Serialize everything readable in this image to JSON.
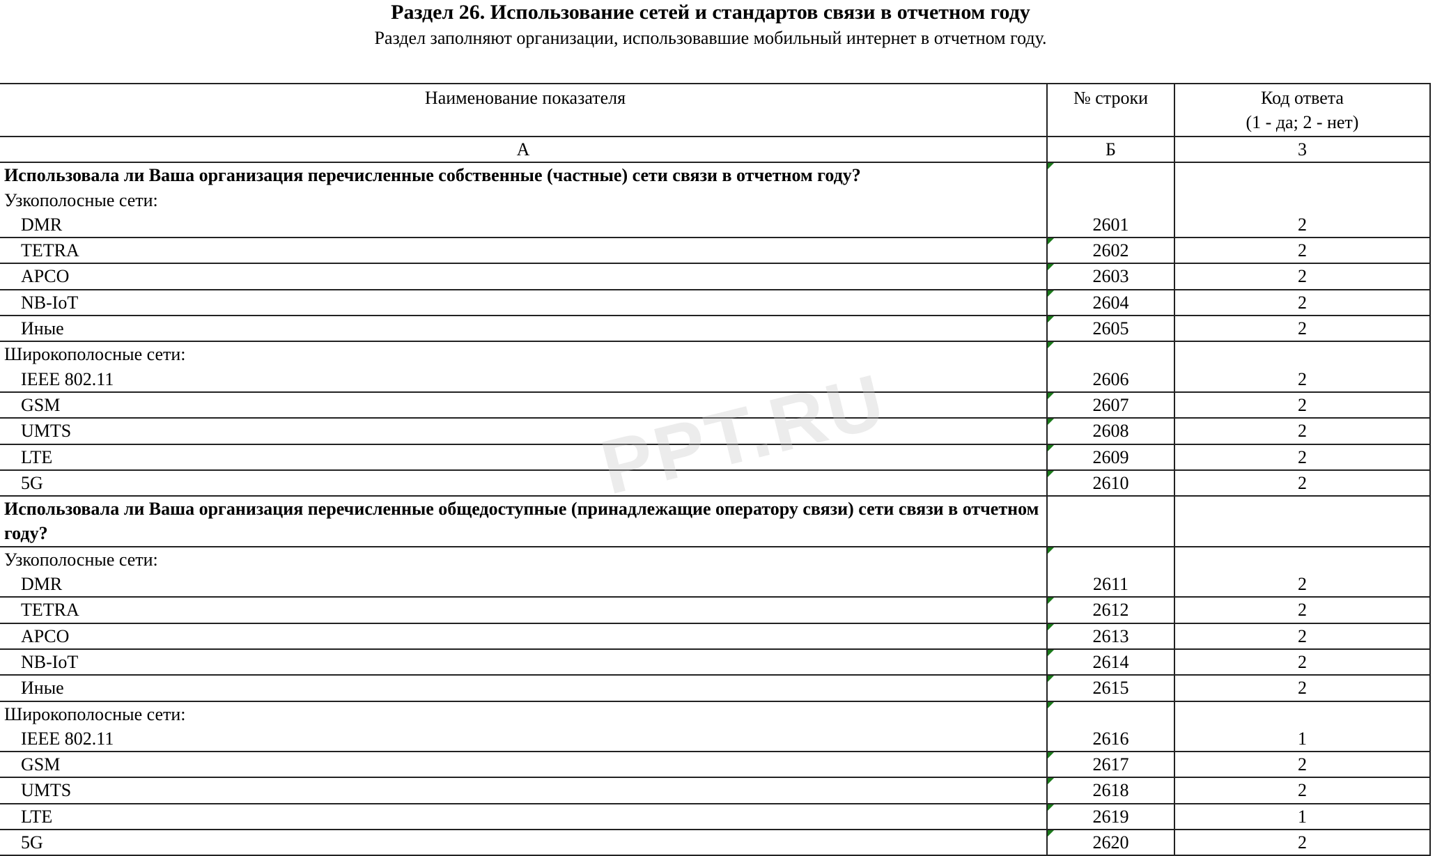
{
  "title": "Раздел 26. Использование сетей и стандартов связи в отчетном году",
  "subtitle": "Раздел заполняют организации, использовавшие мобильный интернет в отчетном году.",
  "watermark": "PPT.RU",
  "colors": {
    "marker": "#1b7a1b",
    "border": "#222222"
  },
  "table": {
    "headers": {
      "name": "Наименование показателя",
      "row_no": "№ строки",
      "code_line1": "Код ответа",
      "code_line2": "(1 - да; 2 - нет)"
    },
    "letters": {
      "a": "А",
      "b": "Б",
      "c": "3"
    },
    "rows": [
      {
        "lines": [
          {
            "t": "Использовала ли Ваша организация перечисленные собственные (частные) сети связи в отчетном году?",
            "s": "bold"
          },
          {
            "t": "Узкополосные сети:",
            "s": ""
          },
          {
            "t": "DMR",
            "s": "indent"
          }
        ],
        "no": "2601",
        "answer": "2",
        "marker": true
      },
      {
        "lines": [
          {
            "t": "TETRA",
            "s": "indent"
          }
        ],
        "no": "2602",
        "answer": "2",
        "marker": true
      },
      {
        "lines": [
          {
            "t": "APCO",
            "s": "indent"
          }
        ],
        "no": "2603",
        "answer": "2",
        "marker": true
      },
      {
        "lines": [
          {
            "t": "NB-IoT",
            "s": "indent"
          }
        ],
        "no": "2604",
        "answer": "2",
        "marker": true
      },
      {
        "lines": [
          {
            "t": "Иные",
            "s": "indent"
          }
        ],
        "no": "2605",
        "answer": "2",
        "marker": true
      },
      {
        "lines": [
          {
            "t": "Широкополосные сети:",
            "s": ""
          },
          {
            "t": "IEEE 802.11",
            "s": "indent"
          }
        ],
        "no": "2606",
        "answer": "2",
        "marker": true
      },
      {
        "lines": [
          {
            "t": "GSM",
            "s": "indent"
          }
        ],
        "no": "2607",
        "answer": "2",
        "marker": true
      },
      {
        "lines": [
          {
            "t": "UMTS",
            "s": "indent"
          }
        ],
        "no": "2608",
        "answer": "2",
        "marker": true
      },
      {
        "lines": [
          {
            "t": "LTE",
            "s": "indent"
          }
        ],
        "no": "2609",
        "answer": "2",
        "marker": true
      },
      {
        "lines": [
          {
            "t": "5G",
            "s": "indent"
          }
        ],
        "no": "2610",
        "answer": "2",
        "marker": true
      },
      {
        "lines": [
          {
            "t": "Использовала ли Ваша организация перечисленные общедоступные (принадлежащие оператору связи) сети связи в отчетном году?",
            "s": "bold"
          }
        ],
        "no": "",
        "answer": "",
        "marker": false
      },
      {
        "lines": [
          {
            "t": "Узкополосные сети:",
            "s": ""
          },
          {
            "t": "DMR",
            "s": "indent"
          }
        ],
        "no": "2611",
        "answer": "2",
        "marker": true
      },
      {
        "lines": [
          {
            "t": "TETRA",
            "s": "indent"
          }
        ],
        "no": "2612",
        "answer": "2",
        "marker": true
      },
      {
        "lines": [
          {
            "t": "APCO",
            "s": "indent"
          }
        ],
        "no": "2613",
        "answer": "2",
        "marker": true
      },
      {
        "lines": [
          {
            "t": "NB-IoT",
            "s": "indent"
          }
        ],
        "no": "2614",
        "answer": "2",
        "marker": true
      },
      {
        "lines": [
          {
            "t": "Иные",
            "s": "indent"
          }
        ],
        "no": "2615",
        "answer": "2",
        "marker": true
      },
      {
        "lines": [
          {
            "t": "Широкополосные сети:",
            "s": ""
          },
          {
            "t": "IEEE 802.11",
            "s": "indent"
          }
        ],
        "no": "2616",
        "answer": "1",
        "marker": true
      },
      {
        "lines": [
          {
            "t": "GSM",
            "s": "indent"
          }
        ],
        "no": "2617",
        "answer": "2",
        "marker": true
      },
      {
        "lines": [
          {
            "t": "UMTS",
            "s": "indent"
          }
        ],
        "no": "2618",
        "answer": "2",
        "marker": true
      },
      {
        "lines": [
          {
            "t": "LTE",
            "s": "indent"
          }
        ],
        "no": "2619",
        "answer": "1",
        "marker": true
      },
      {
        "lines": [
          {
            "t": "5G",
            "s": "indent"
          }
        ],
        "no": "2620",
        "answer": "2",
        "marker": true
      }
    ]
  }
}
